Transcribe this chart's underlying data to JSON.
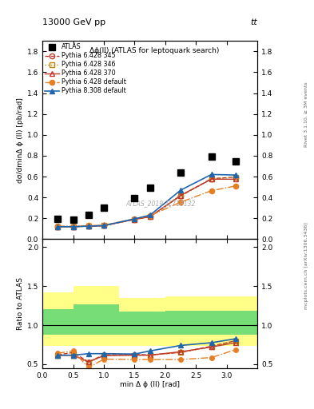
{
  "title": "13000 GeV pp",
  "title_right": "tt",
  "subplot_title": "Δϕ(ll) (ATLAS for leptoquark search)",
  "ylabel_main": "dσ/dminΔ ϕ (ll) [pb/rad]",
  "ylabel_ratio": "Ratio to ATLAS",
  "xlabel": "min Δ ϕ (ll) [rad]",
  "watermark": "ATLAS_2019_I1718132",
  "right_label_top": "Rivet 3.1.10, ≥ 3M events",
  "right_label_bottom": "mcplots.cern.ch [arXiv:1306.3436]",
  "x_values": [
    0.25,
    0.5,
    0.75,
    1.0,
    1.5,
    1.75,
    2.25,
    2.75,
    3.14
  ],
  "atlas_y": [
    0.195,
    0.185,
    0.235,
    0.305,
    0.395,
    0.495,
    0.635,
    0.795,
    0.745
  ],
  "py6_345_y": [
    0.12,
    0.12,
    0.125,
    0.13,
    0.19,
    0.215,
    0.415,
    0.58,
    0.595
  ],
  "py6_346_y": [
    0.12,
    0.12,
    0.125,
    0.13,
    0.19,
    0.215,
    0.415,
    0.575,
    0.595
  ],
  "py6_370_y": [
    0.12,
    0.12,
    0.125,
    0.13,
    0.19,
    0.215,
    0.42,
    0.575,
    0.575
  ],
  "py6_default_y": [
    0.125,
    0.125,
    0.13,
    0.135,
    0.195,
    0.225,
    0.355,
    0.465,
    0.51
  ],
  "py8_default_y": [
    0.12,
    0.12,
    0.125,
    0.13,
    0.195,
    0.23,
    0.47,
    0.62,
    0.615
  ],
  "ratio_py6_345": [
    0.62,
    0.65,
    0.53,
    0.62,
    0.625,
    0.62,
    0.65,
    0.73,
    0.8
  ],
  "ratio_py6_346": [
    0.615,
    0.615,
    0.52,
    0.61,
    0.615,
    0.615,
    0.65,
    0.72,
    0.8
  ],
  "ratio_py6_370": [
    0.615,
    0.615,
    0.53,
    0.61,
    0.615,
    0.615,
    0.66,
    0.72,
    0.775
  ],
  "ratio_py6_default": [
    0.64,
    0.67,
    0.455,
    0.565,
    0.56,
    0.56,
    0.56,
    0.585,
    0.685
  ],
  "ratio_py8_default": [
    0.615,
    0.615,
    0.635,
    0.635,
    0.63,
    0.67,
    0.74,
    0.775,
    0.825
  ],
  "xb_edges": [
    0.0,
    0.5,
    1.25,
    2.0,
    2.75,
    3.5
  ],
  "y_hi_yellow": [
    1.42,
    1.5,
    1.35,
    1.37,
    1.37,
    1.37
  ],
  "y_lo_yellow": [
    0.73,
    0.73,
    0.73,
    0.73,
    0.73,
    0.73
  ],
  "y_hi_green": [
    1.2,
    1.27,
    1.17,
    1.18,
    1.18,
    1.18
  ],
  "y_lo_green": [
    0.88,
    0.88,
    0.88,
    0.88,
    0.88,
    0.88
  ],
  "ylim_main": [
    0.0,
    1.9
  ],
  "ylim_ratio_lo": 0.45,
  "ylim_ratio_hi": 2.1,
  "xlim": [
    0.0,
    3.5
  ],
  "yticks_main": [
    0.0,
    0.2,
    0.4,
    0.6,
    0.8,
    1.0,
    1.2,
    1.4,
    1.6,
    1.8
  ],
  "yticks_ratio": [
    0.5,
    1.0,
    1.5,
    2.0
  ],
  "xticks": [
    0.0,
    0.5,
    1.0,
    1.5,
    2.0,
    2.5,
    3.0
  ],
  "color_py6_345": "#c0392b",
  "color_py6_346": "#b8860b",
  "color_py6_370": "#c0392b",
  "color_py6_default": "#e67e22",
  "color_py8_default": "#2166ac",
  "color_atlas": "#000000",
  "green_color": "#77dd77",
  "yellow_color": "#ffff88"
}
